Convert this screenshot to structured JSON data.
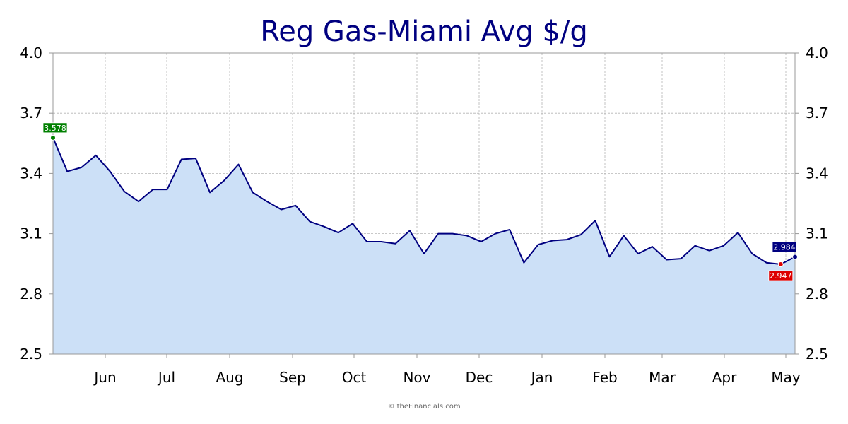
{
  "chart_data": {
    "type": "area",
    "title": "Reg Gas-Miami Avg $/g",
    "xlabel": "",
    "ylabel": "",
    "ylim": [
      2.5,
      4.0
    ],
    "yticks": [
      "2.5",
      "2.8",
      "3.1",
      "3.4",
      "3.7",
      "4.0"
    ],
    "y_axis_sides": "left-and-right",
    "x_tick_labels": [
      "Jun",
      "Jul",
      "Aug",
      "Sep",
      "Oct",
      "Nov",
      "Dec",
      "Jan",
      "Feb",
      "Mar",
      "Apr",
      "May"
    ],
    "grid": true,
    "series": [
      {
        "values": [
          3.578,
          3.41,
          3.43,
          3.49,
          3.41,
          3.31,
          3.26,
          3.32,
          3.32,
          3.47,
          3.475,
          3.305,
          3.365,
          3.445,
          3.305,
          3.26,
          3.22,
          3.24,
          3.16,
          3.135,
          3.105,
          3.15,
          3.06,
          3.06,
          3.05,
          3.115,
          3.0,
          3.1,
          3.1,
          3.09,
          3.06,
          3.1,
          3.12,
          2.955,
          3.045,
          3.065,
          3.07,
          3.095,
          3.165,
          2.985,
          3.09,
          3.0,
          3.035,
          2.97,
          2.975,
          3.04,
          3.015,
          3.04,
          3.105,
          3.0,
          2.955,
          2.947,
          2.984
        ]
      }
    ],
    "annotations": {
      "first": {
        "label": "3.578",
        "value": 3.578
      },
      "min": {
        "label": "2.947",
        "value": 2.947
      },
      "last": {
        "label": "2.984",
        "value": 2.984
      }
    },
    "colors": {
      "line": "#000080",
      "fill": "#cce0f7",
      "first_marker": "#008000",
      "min_marker": "#dd0000",
      "last_marker": "#000080"
    },
    "credit": "© theFinancials.com"
  }
}
